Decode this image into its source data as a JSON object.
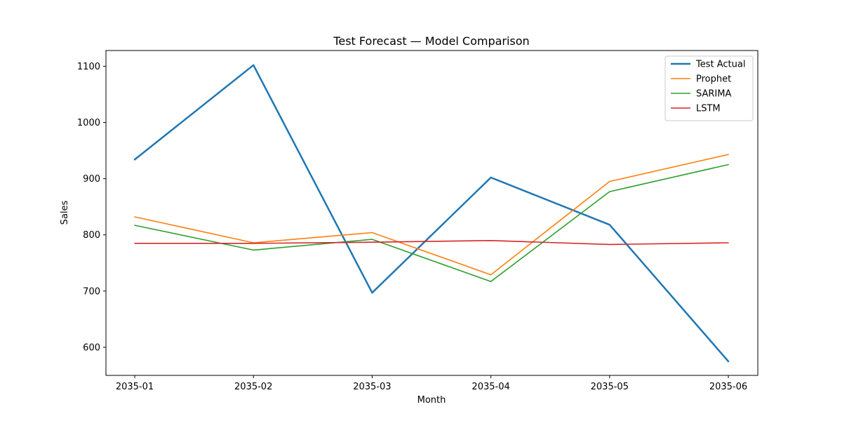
{
  "chart_data": {
    "type": "line",
    "title": "Test Forecast — Model Comparison",
    "xlabel": "Month",
    "ylabel": "Sales",
    "categories": [
      "2035-01",
      "2035-02",
      "2035-03",
      "2035-04",
      "2035-05",
      "2035-06"
    ],
    "ylim": [
      550,
      1128
    ],
    "yticks": [
      600,
      700,
      800,
      900,
      1000,
      1100
    ],
    "grid": false,
    "legend_position": "top-right",
    "series": [
      {
        "name": "Test Actual",
        "color": "#1f77b4",
        "emphasis": "thick",
        "values": [
          934,
          1102,
          697,
          902,
          818,
          575
        ]
      },
      {
        "name": "Prophet",
        "color": "#ff7f0e",
        "values": [
          832,
          786,
          804,
          729,
          895,
          943
        ]
      },
      {
        "name": "SARIMA",
        "color": "#2ca02c",
        "values": [
          817,
          773,
          792,
          717,
          877,
          925
        ]
      },
      {
        "name": "LSTM",
        "color": "#d62728",
        "values": [
          785,
          785,
          787,
          790,
          783,
          786
        ]
      }
    ]
  }
}
